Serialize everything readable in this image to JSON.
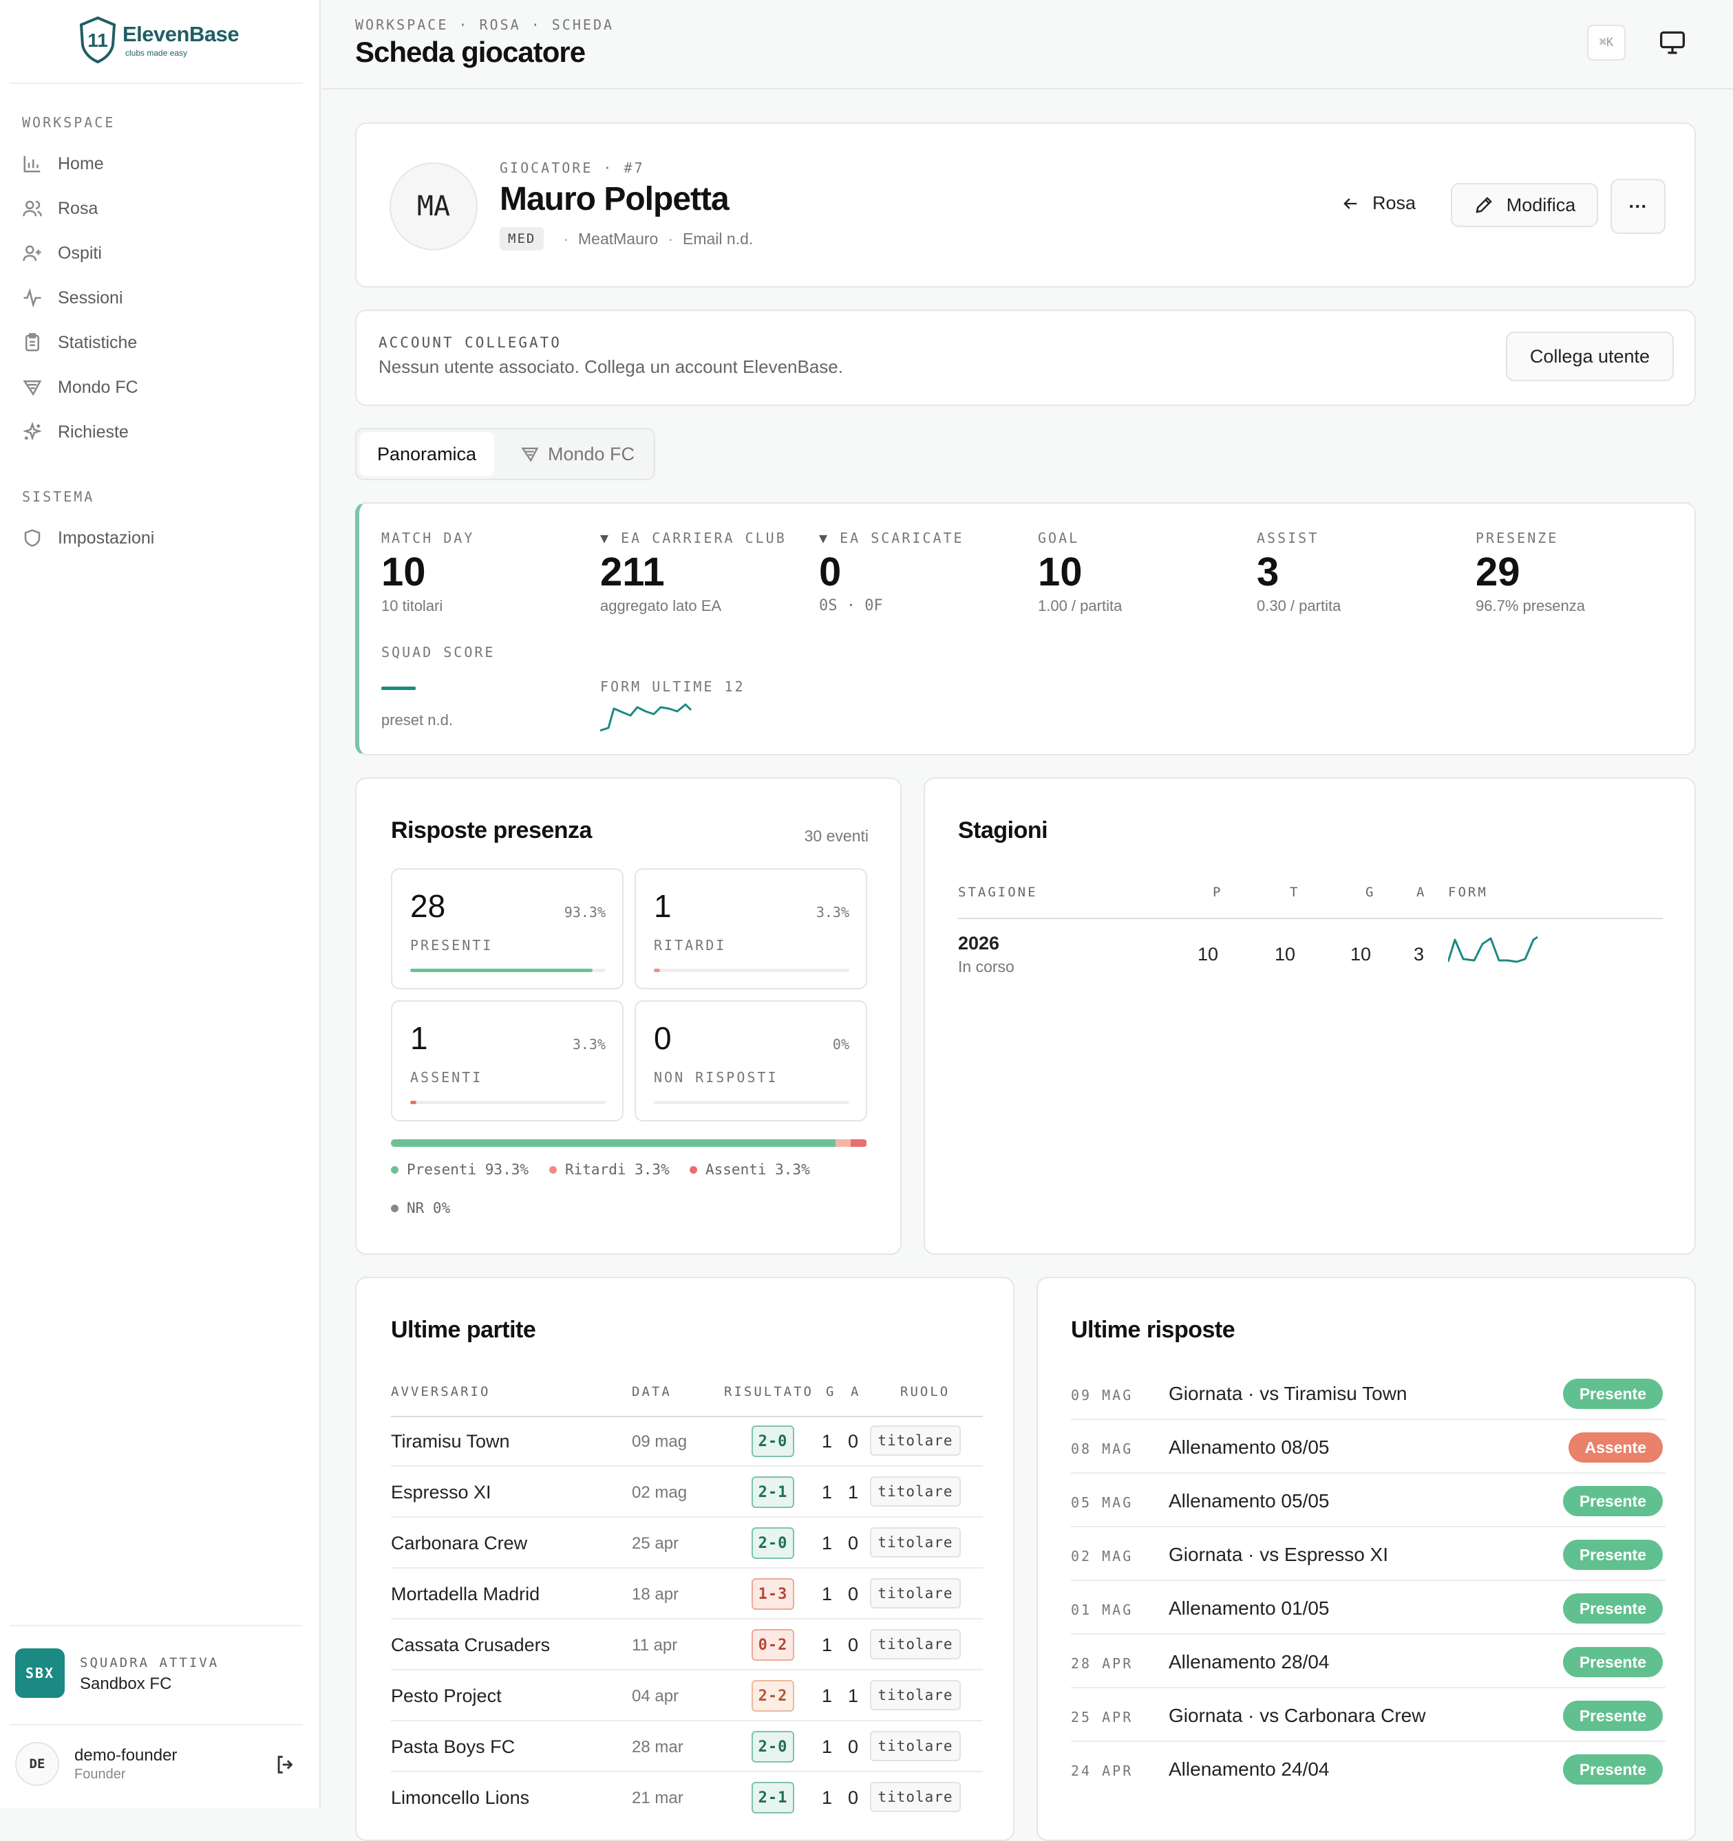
{
  "app": {
    "brand": "ElevenBase",
    "tagline": "clubs made easy"
  },
  "sidebar": {
    "workspace_label": "WORKSPACE",
    "items": [
      {
        "label": "Home",
        "icon": "bar-chart-icon"
      },
      {
        "label": "Rosa",
        "icon": "users-icon"
      },
      {
        "label": "Ospiti",
        "icon": "user-plus-icon"
      },
      {
        "label": "Sessioni",
        "icon": "activity-icon"
      },
      {
        "label": "Statistiche",
        "icon": "clipboard-icon"
      },
      {
        "label": "Mondo FC",
        "icon": "fc-logo-icon"
      },
      {
        "label": "Richieste",
        "icon": "sparkles-icon"
      }
    ],
    "system_label": "SISTEMA",
    "system_items": [
      {
        "label": "Impostazioni",
        "icon": "shield-icon"
      }
    ],
    "team": {
      "label": "SQUADRA ATTIVA",
      "name": "Sandbox FC",
      "badge": "SBX"
    },
    "user": {
      "initials": "DE",
      "name": "demo-founder",
      "role": "Founder"
    }
  },
  "header": {
    "breadcrumb": "WORKSPACE · ROSA · SCHEDA",
    "title": "Scheda giocatore",
    "shortcut": "⌘K"
  },
  "player": {
    "initials": "MA",
    "label": "GIOCATORE · #7",
    "name": "Mauro Polpetta",
    "position": "MED",
    "handle": "MeatMauro",
    "email": "Email n.d.",
    "back_label": "Rosa",
    "edit_label": "Modifica",
    "more_label": "···"
  },
  "account": {
    "label": "ACCOUNT COLLEGATO",
    "text": "Nessun utente associato. Collega un account ElevenBase.",
    "button": "Collega utente"
  },
  "tabs": [
    {
      "label": "Panoramica",
      "active": true
    },
    {
      "label": "Mondo FC",
      "active": false
    }
  ],
  "kpis": [
    {
      "label": "MATCH DAY",
      "value": "10",
      "sub": "10 titolari"
    },
    {
      "label": "EA CARRIERA CLUB",
      "value": "211",
      "sub": "aggregato lato EA"
    },
    {
      "label": "EA SCARICATE",
      "value": "0",
      "sub": "0S · 0F"
    },
    {
      "label": "GOAL",
      "value": "10",
      "sub": "1.00 / partita"
    },
    {
      "label": "ASSIST",
      "value": "3",
      "sub": "0.30 / partita"
    },
    {
      "label": "PRESENZE",
      "value": "29",
      "sub": "96.7% presenza"
    }
  ],
  "squad_score": {
    "label": "SQUAD SCORE",
    "sub": "preset n.d."
  },
  "form": {
    "label": "FORM ULTIME 12"
  },
  "attendance": {
    "title": "Risposte presenza",
    "count": "30 eventi",
    "tiles": [
      {
        "value": "28",
        "pct": "93.3%",
        "label": "PRESENTI",
        "fill": 0.933,
        "color": "#6cc195"
      },
      {
        "value": "1",
        "pct": "3.3%",
        "label": "RITARDI",
        "fill": 0.033,
        "color": "#eb8f7c"
      },
      {
        "value": "1",
        "pct": "3.3%",
        "label": "ASSENTI",
        "fill": 0.033,
        "color": "#e86f6f"
      },
      {
        "value": "0",
        "pct": "0%",
        "label": "NON RISPOSTI",
        "fill": 0,
        "color": "#888888"
      }
    ],
    "legend": [
      "Presenti 93.3%",
      "Ritardi 3.3%",
      "Assenti 3.3%",
      "NR 0%"
    ]
  },
  "seasons": {
    "title": "Stagioni",
    "headers": [
      "STAGIONE",
      "P",
      "T",
      "G",
      "A",
      "FORM"
    ],
    "rows": [
      {
        "season": "2026",
        "status": "In corso",
        "p": "10",
        "t": "10",
        "g": "10",
        "a": "3"
      }
    ]
  },
  "matches": {
    "title": "Ultime partite",
    "headers": [
      "AVVERSARIO",
      "DATA",
      "RISULTATO",
      "G",
      "A",
      "RUOLO"
    ],
    "rows": [
      {
        "opponent": "Tiramisu Town",
        "date": "09 mag",
        "result": "2-0",
        "outcome": "win",
        "g": "1",
        "a": "0",
        "role": "titolare"
      },
      {
        "opponent": "Espresso XI",
        "date": "02 mag",
        "result": "2-1",
        "outcome": "win",
        "g": "1",
        "a": "1",
        "role": "titolare"
      },
      {
        "opponent": "Carbonara Crew",
        "date": "25 apr",
        "result": "2-0",
        "outcome": "win",
        "g": "1",
        "a": "0",
        "role": "titolare"
      },
      {
        "opponent": "Mortadella Madrid",
        "date": "18 apr",
        "result": "1-3",
        "outcome": "loss",
        "g": "1",
        "a": "0",
        "role": "titolare"
      },
      {
        "opponent": "Cassata Crusaders",
        "date": "11 apr",
        "result": "0-2",
        "outcome": "loss",
        "g": "1",
        "a": "0",
        "role": "titolare"
      },
      {
        "opponent": "Pesto Project",
        "date": "04 apr",
        "result": "2-2",
        "outcome": "draw",
        "g": "1",
        "a": "1",
        "role": "titolare"
      },
      {
        "opponent": "Pasta Boys FC",
        "date": "28 mar",
        "result": "2-0",
        "outcome": "win",
        "g": "1",
        "a": "0",
        "role": "titolare"
      },
      {
        "opponent": "Limoncello Lions",
        "date": "21 mar",
        "result": "2-1",
        "outcome": "win",
        "g": "1",
        "a": "0",
        "role": "titolare"
      }
    ]
  },
  "responses": {
    "title": "Ultime risposte",
    "rows": [
      {
        "date": "09 MAG",
        "text": "Giornata · vs Tiramisu Town",
        "status": "Presente",
        "ok": true
      },
      {
        "date": "08 MAG",
        "text": "Allenamento 08/05",
        "status": "Assente",
        "ok": false
      },
      {
        "date": "05 MAG",
        "text": "Allenamento 05/05",
        "status": "Presente",
        "ok": true
      },
      {
        "date": "02 MAG",
        "text": "Giornata · vs Espresso XI",
        "status": "Presente",
        "ok": true
      },
      {
        "date": "01 MAG",
        "text": "Allenamento 01/05",
        "status": "Presente",
        "ok": true
      },
      {
        "date": "28 APR",
        "text": "Allenamento 28/04",
        "status": "Presente",
        "ok": true
      },
      {
        "date": "25 APR",
        "text": "Giornata · vs Carbonara Crew",
        "status": "Presente",
        "ok": true
      },
      {
        "date": "24 APR",
        "text": "Allenamento 24/04",
        "status": "Presente",
        "ok": true
      }
    ]
  },
  "colors": {
    "accent": "#1b8a83",
    "present": "#61c08f",
    "absent": "#e9816b",
    "late": "#eb8f7c"
  }
}
